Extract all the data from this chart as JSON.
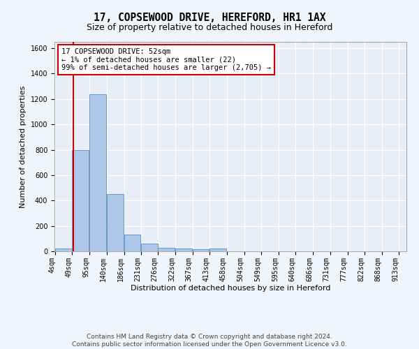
{
  "title": "17, COPSEWOOD DRIVE, HEREFORD, HR1 1AX",
  "subtitle": "Size of property relative to detached houses in Hereford",
  "xlabel": "Distribution of detached houses by size in Hereford",
  "ylabel": "Number of detached properties",
  "footnote1": "Contains HM Land Registry data © Crown copyright and database right 2024.",
  "footnote2": "Contains public sector information licensed under the Open Government Licence v3.0.",
  "bins": [
    4,
    49,
    95,
    140,
    186,
    231,
    276,
    322,
    367,
    413,
    458,
    504,
    549,
    595,
    640,
    686,
    731,
    777,
    822,
    868,
    913
  ],
  "bar_values": [
    22,
    800,
    1240,
    450,
    130,
    62,
    25,
    20,
    15,
    20,
    0,
    0,
    0,
    0,
    0,
    0,
    0,
    0,
    0,
    0
  ],
  "bar_color": "#aec6e8",
  "bar_edgecolor": "#5a8fc2",
  "vline_x": 52,
  "vline_color": "#cc0000",
  "annotation_line1": "17 COPSEWOOD DRIVE: 52sqm",
  "annotation_line2": "← 1% of detached houses are smaller (22)",
  "annotation_line3": "99% of semi-detached houses are larger (2,705) →",
  "annotation_box_facecolor": "#ffffff",
  "annotation_box_edgecolor": "#cc0000",
  "ylim": [
    0,
    1650
  ],
  "yticks": [
    0,
    200,
    400,
    600,
    800,
    1000,
    1200,
    1400,
    1600
  ],
  "xlim": [
    4,
    913
  ],
  "background_color": "#e8eef7",
  "fig_background_color": "#f0f4fb",
  "grid_color": "#ffffff",
  "title_fontsize": 10.5,
  "subtitle_fontsize": 9,
  "label_fontsize": 8,
  "tick_fontsize": 7,
  "annotation_fontsize": 7.5,
  "footnote_fontsize": 6.5
}
